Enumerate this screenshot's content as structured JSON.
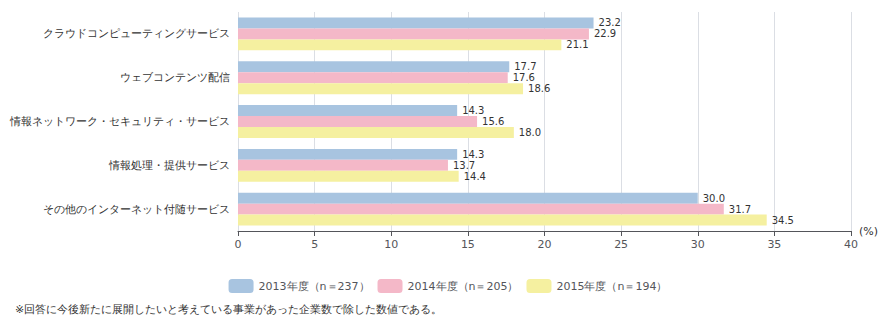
{
  "chart_data": {
    "type": "bar",
    "orientation": "horizontal",
    "categories": [
      "その他のインターネット付随サービス",
      "情報処理・提供サービス",
      "情報ネットワーク・セキュリティ・サービス",
      "ウェブコンテンツ配信",
      "クラウドコンピューティングサービス"
    ],
    "series": [
      {
        "name": "2013年度（n＝237）",
        "color": "#a8c4e0",
        "values": [
          30.0,
          14.3,
          14.3,
          17.7,
          23.2
        ],
        "value_labels": [
          "30.0",
          "14.3",
          "14.3",
          "17.7",
          "23.2"
        ]
      },
      {
        "name": "2014年度（n＝205）",
        "color": "#f4b8c8",
        "values": [
          31.7,
          13.7,
          15.6,
          17.6,
          22.9
        ],
        "value_labels": [
          "31.7",
          "13.7",
          "15.6",
          "17.6",
          "22.9"
        ]
      },
      {
        "name": "2015年度（n＝194）",
        "color": "#f5f0a0",
        "values": [
          34.5,
          14.4,
          18.0,
          18.6,
          21.1
        ],
        "value_labels": [
          "34.5",
          "14.4",
          "18.0",
          "18.6",
          "21.1"
        ]
      }
    ],
    "xlabel": "(%)",
    "xlim": [
      0,
      40
    ],
    "xticks": [
      0,
      5,
      10,
      15,
      20,
      25,
      30,
      35,
      40
    ],
    "grid": true,
    "legend": "bottom",
    "data_labels": true,
    "footnote": "※回答に今後新たに展開したいと考えている事業があった企業数で除した数値である。"
  }
}
